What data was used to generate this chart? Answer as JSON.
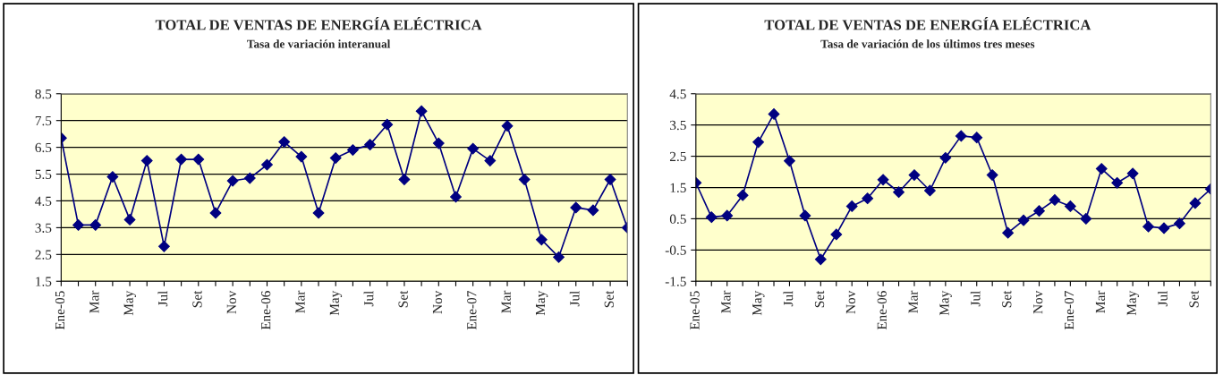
{
  "chart_data": [
    {
      "type": "line",
      "title": "TOTAL DE VENTAS DE ENERGÍA ELÉCTRICA",
      "subtitle": "Tasa de variación interanual",
      "categories": [
        "Ene-05",
        null,
        "Mar",
        null,
        "May",
        null,
        "Jul",
        null,
        "Set",
        null,
        "Nov",
        null,
        "Ene-06",
        null,
        "Mar",
        null,
        "May",
        null,
        "Jul",
        null,
        "Set",
        null,
        "Nov",
        null,
        "Ene-07",
        null,
        "Mar",
        null,
        "May",
        null,
        "Jul",
        null,
        "Set",
        null
      ],
      "series": [
        {
          "color": "#000080",
          "values": [
            6.85,
            3.6,
            3.6,
            5.4,
            3.8,
            6.0,
            2.8,
            6.05,
            6.05,
            4.05,
            5.25,
            5.35,
            5.85,
            6.7,
            6.15,
            4.05,
            6.1,
            6.4,
            6.6,
            7.35,
            5.3,
            7.85,
            6.65,
            4.65,
            6.45,
            6.0,
            7.3,
            5.3,
            3.05,
            2.4,
            4.25,
            4.15,
            5.3,
            3.5
          ]
        }
      ],
      "ylim": [
        1.5,
        8.5
      ],
      "yticks": [
        1.5,
        2.5,
        3.5,
        4.5,
        5.5,
        6.5,
        7.5,
        8.5
      ],
      "grid": "y",
      "marker": "diamond",
      "line_style": "solid"
    },
    {
      "type": "line",
      "title": "TOTAL DE VENTAS DE ENERGÍA ELÉCTRICA",
      "subtitle": "Tasa de variación de los últimos tres meses",
      "categories": [
        "Ene-05",
        null,
        "Mar",
        null,
        "May",
        null,
        "Jul",
        null,
        "Set",
        null,
        "Nov",
        null,
        "Ene-06",
        null,
        "Mar",
        null,
        "May",
        null,
        "Jul",
        null,
        "Set",
        null,
        "Nov",
        null,
        "Ene-07",
        null,
        "Mar",
        null,
        "May",
        null,
        "Jul",
        null,
        "Set",
        null
      ],
      "series": [
        {
          "color": "#000080",
          "values": [
            1.65,
            0.55,
            0.6,
            1.25,
            2.95,
            3.85,
            2.35,
            0.6,
            -0.8,
            0.0,
            0.9,
            1.15,
            1.75,
            1.35,
            1.9,
            1.4,
            2.45,
            3.15,
            3.1,
            1.9,
            0.05,
            0.45,
            0.75,
            1.1,
            0.9,
            0.5,
            2.1,
            1.65,
            1.95,
            0.25,
            0.2,
            0.35,
            1.0,
            1.45
          ]
        }
      ],
      "ylim": [
        -1.5,
        4.5
      ],
      "yticks": [
        -1.5,
        -0.5,
        0.5,
        1.5,
        2.5,
        3.5,
        4.5
      ],
      "grid": "y",
      "marker": "diamond",
      "line_style": "solid"
    }
  ]
}
